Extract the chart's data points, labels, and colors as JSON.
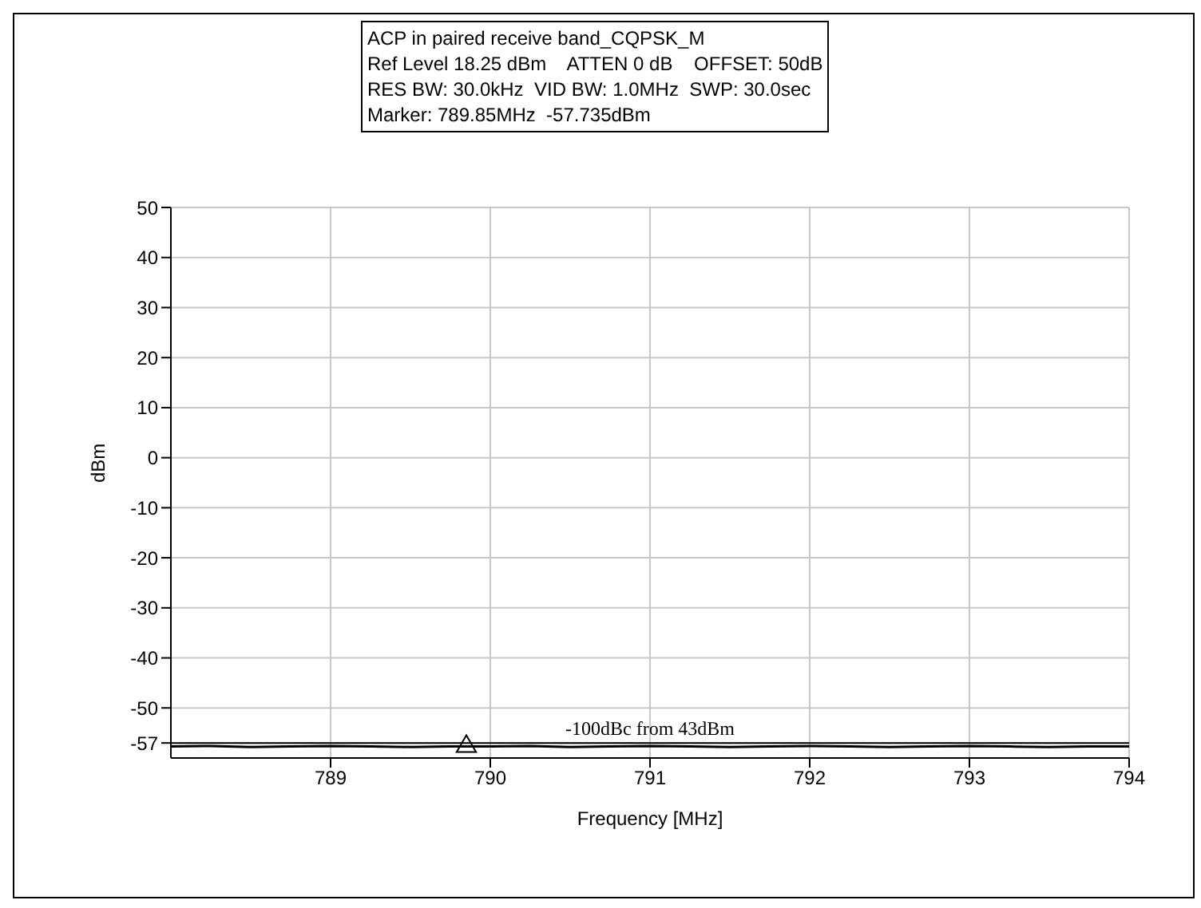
{
  "chart_data": {
    "type": "line",
    "title": "ACP in paired receive band_CQPSK_M",
    "annotations": [
      "Ref Level 18.25 dBm    ATTEN 0 dB    OFFSET: 50dB",
      "RES BW: 30.0kHz  VID BW: 1.0MHz  SWP: 30.0sec",
      "Marker: 789.85MHz  -57.735dBm"
    ],
    "xlabel": "Frequency [MHz]",
    "ylabel": "dBm",
    "xlim": [
      788,
      794
    ],
    "xticks": [
      789,
      790,
      791,
      792,
      793,
      794
    ],
    "ylim": [
      -60,
      50
    ],
    "yticks": [
      50,
      40,
      30,
      20,
      10,
      0,
      -10,
      -20,
      -30,
      -40,
      -50,
      {
        "value": -57,
        "label": "-57"
      }
    ],
    "grid": true,
    "series": [
      {
        "color": "#000000",
        "marker": "none",
        "x": [
          788,
          788.25,
          788.5,
          788.75,
          789,
          789.25,
          789.5,
          789.75,
          790,
          790.25,
          790.5,
          790.75,
          791,
          791.25,
          791.5,
          791.75,
          792,
          792.25,
          792.5,
          792.75,
          793,
          793.25,
          793.5,
          793.75,
          794
        ],
        "values": [
          -57.7,
          -57.6,
          -57.8,
          -57.7,
          -57.6,
          -57.7,
          -57.8,
          -57.7,
          -57.7,
          -57.6,
          -57.8,
          -57.7,
          -57.6,
          -57.7,
          -57.8,
          -57.7,
          -57.6,
          -57.7,
          -57.8,
          -57.7,
          -57.6,
          -57.7,
          -57.8,
          -57.7,
          -57.7
        ]
      },
      {
        "type": "scatter",
        "color": "#000000",
        "marker": "triangle",
        "x": [
          789.85
        ],
        "values": [
          -57.7
        ]
      }
    ],
    "ref_lines": [
      {
        "axis": "y",
        "value": -57,
        "label": "-100dBc from 43dBm",
        "color": "#000000"
      }
    ]
  }
}
